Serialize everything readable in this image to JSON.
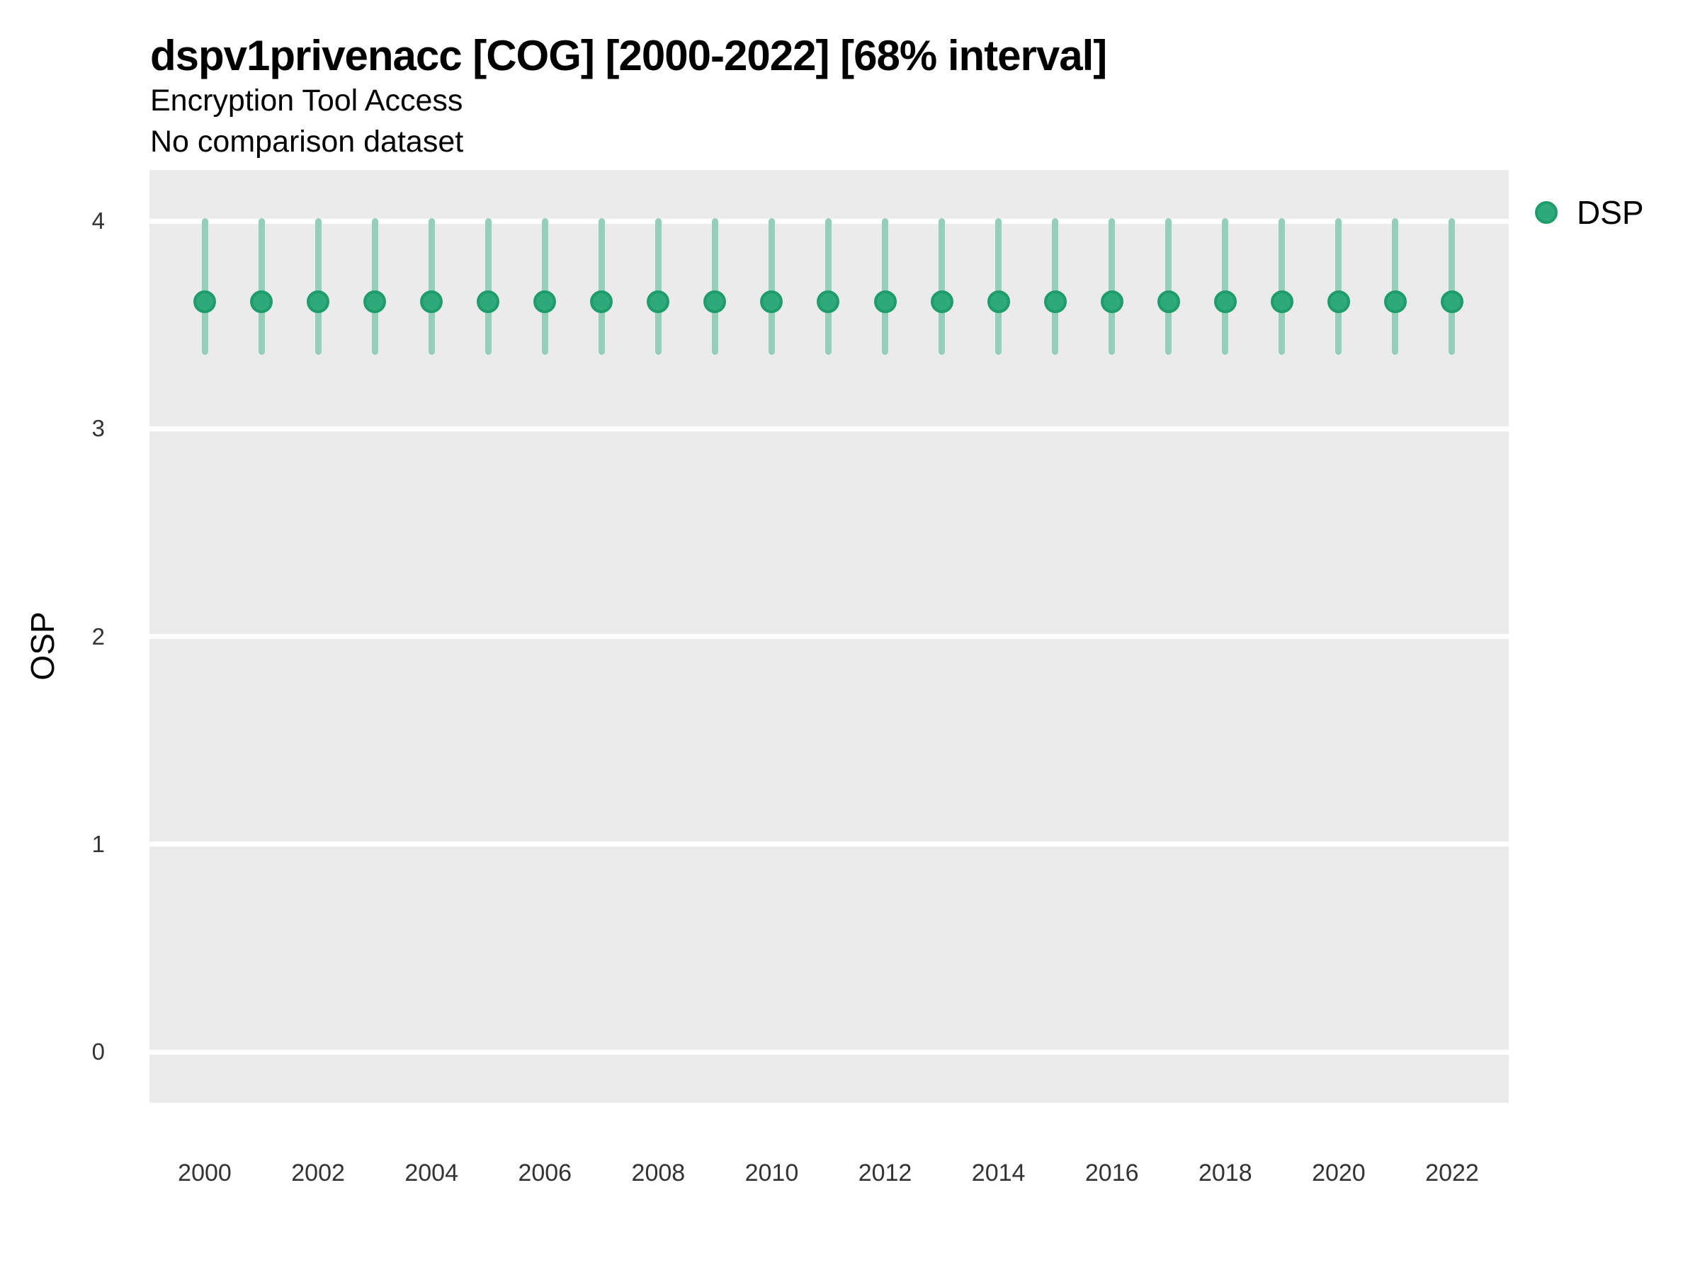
{
  "header": {
    "title": "dspv1privenacc [COG] [2000-2022] [68% interval]",
    "subtitle": "Encryption Tool Access",
    "note": "No comparison dataset"
  },
  "legend": {
    "items": [
      {
        "label": "DSP",
        "fill": "#2EA97B",
        "stroke": "#1E9D6A"
      }
    ],
    "position": "right-top"
  },
  "colors": {
    "panel_background": "#EBEBEB",
    "gridline": "#FFFFFF",
    "range_bar": "#96CFB9",
    "point_fill": "#2EA97B",
    "point_stroke": "#1E9D6A",
    "text": "#000000",
    "tick_text": "#333333"
  },
  "chart_data": {
    "type": "pointrange",
    "title": "dspv1privenacc [COG] [2000-2022] [68% interval]",
    "subtitle": "Encryption Tool Access",
    "note": "No comparison dataset",
    "xlabel": "",
    "ylabel": "OSP",
    "ylim": [
      -0.25,
      4.25
    ],
    "xlim": [
      1999,
      2023
    ],
    "y_ticks": [
      4,
      3,
      2,
      1,
      0
    ],
    "x_ticks": [
      2000,
      2002,
      2004,
      2006,
      2008,
      2010,
      2012,
      2014,
      2016,
      2018,
      2020,
      2022
    ],
    "grid": "major-horizontal-only",
    "legend_position": "right",
    "interval_label": "68% interval",
    "series": [
      {
        "name": "DSP",
        "x": [
          2000,
          2001,
          2002,
          2003,
          2004,
          2005,
          2006,
          2007,
          2008,
          2009,
          2010,
          2011,
          2012,
          2013,
          2014,
          2015,
          2016,
          2017,
          2018,
          2019,
          2020,
          2021,
          2022
        ],
        "point": [
          3.61,
          3.61,
          3.61,
          3.61,
          3.61,
          3.61,
          3.61,
          3.61,
          3.61,
          3.61,
          3.61,
          3.61,
          3.61,
          3.61,
          3.61,
          3.61,
          3.61,
          3.61,
          3.61,
          3.61,
          3.61,
          3.61,
          3.61
        ],
        "lower": [
          3.37,
          3.37,
          3.37,
          3.37,
          3.37,
          3.37,
          3.37,
          3.37,
          3.37,
          3.37,
          3.37,
          3.37,
          3.37,
          3.37,
          3.37,
          3.37,
          3.37,
          3.37,
          3.37,
          3.37,
          3.37,
          3.37,
          3.37
        ],
        "upper": [
          4.0,
          4.0,
          4.0,
          4.0,
          4.0,
          4.0,
          4.0,
          4.0,
          4.0,
          4.0,
          4.0,
          4.0,
          4.0,
          4.0,
          4.0,
          4.0,
          4.0,
          4.0,
          4.0,
          4.0,
          4.0,
          4.0,
          4.0
        ]
      }
    ]
  }
}
